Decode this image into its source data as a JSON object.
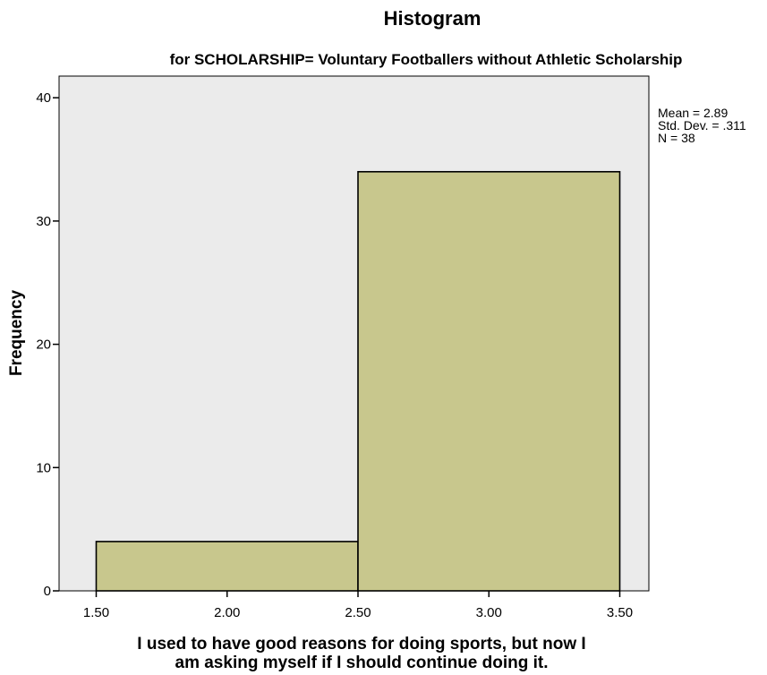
{
  "chart_data": {
    "type": "bar",
    "title": "Histogram",
    "subtitle": "for SCHOLARSHIP= Voluntary Footballers without Athletic Scholarship",
    "xlabel": [
      "I used to have good reasons for doing sports, but now I",
      "am asking myself if I should continue doing it."
    ],
    "ylabel": "Frequency",
    "bins": [
      {
        "x0": 1.5,
        "x1": 2.5,
        "value": 4
      },
      {
        "x0": 2.5,
        "x1": 3.5,
        "value": 34
      }
    ],
    "xlim": [
      1.5,
      3.5
    ],
    "ylim": [
      0,
      42
    ],
    "xticks": [
      "1.50",
      "2.00",
      "2.50",
      "3.00",
      "3.50"
    ],
    "xtick_values": [
      1.5,
      2.0,
      2.5,
      3.0,
      3.5
    ],
    "yticks": [
      "0",
      "10",
      "20",
      "30",
      "40"
    ],
    "ytick_values": [
      0,
      10,
      20,
      30,
      40
    ],
    "grid": false,
    "stats": [
      "Mean = 2.89",
      "Std. Dev. = .311",
      "N = 38"
    ],
    "colors": {
      "bar_fill": "#c8c78d",
      "plot_bg": "#ebebeb",
      "axis": "#000000"
    }
  }
}
